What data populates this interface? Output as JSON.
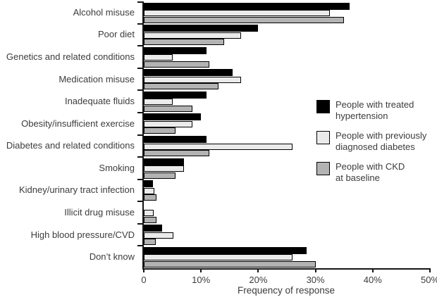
{
  "chart_data": {
    "type": "bar",
    "orientation": "horizontal",
    "title": "",
    "xlabel": "Frequency of response",
    "ylabel": "",
    "xlim": [
      0,
      50
    ],
    "x_ticks": [
      {
        "label": "0",
        "value": 0
      },
      {
        "label": "10%",
        "value": 10
      },
      {
        "label": "20%",
        "value": 20
      },
      {
        "label": "30%",
        "value": 30
      },
      {
        "label": "40%",
        "value": 40
      },
      {
        "label": "50%",
        "value": 50
      }
    ],
    "grid": false,
    "legend_position": "right",
    "categories": [
      "Alcohol misuse",
      "Poor diet",
      "Genetics and related conditions",
      "Medication misuse",
      "Inadequate fluids",
      "Obesity/insufficient exercise",
      "Diabetes and related conditions",
      "Smoking",
      "Kidney/urinary tract infection",
      "Illicit drug misuse",
      "High blood pressure/CVD",
      "Don’t know"
    ],
    "series": [
      {
        "name": "People with treated hypertension",
        "color": "#000000",
        "values": [
          36,
          20,
          11,
          15.5,
          11,
          10,
          11,
          7,
          1.6,
          0,
          3.2,
          28.5
        ]
      },
      {
        "name": "People with previously diagnosed diabetes",
        "color": "#ebebeb",
        "values": [
          32.5,
          17,
          5,
          17,
          5,
          8.5,
          26,
          7,
          1.8,
          1.7,
          5.2,
          26
        ]
      },
      {
        "name": "People with CKD at baseline",
        "color": "#b3b3b3",
        "values": [
          35,
          14,
          11.5,
          13,
          8.5,
          5.5,
          11.5,
          5.5,
          2.2,
          2.2,
          2.1,
          30
        ]
      }
    ]
  },
  "legend": {
    "items": [
      {
        "line1": "People with treated",
        "line2": "hypertension"
      },
      {
        "line1": "People with previously",
        "line2": "diagnosed diabetes"
      },
      {
        "line1": "People with CKD",
        "line2": "at baseline"
      }
    ]
  },
  "axis": {
    "x_title": "Frequency of response"
  }
}
